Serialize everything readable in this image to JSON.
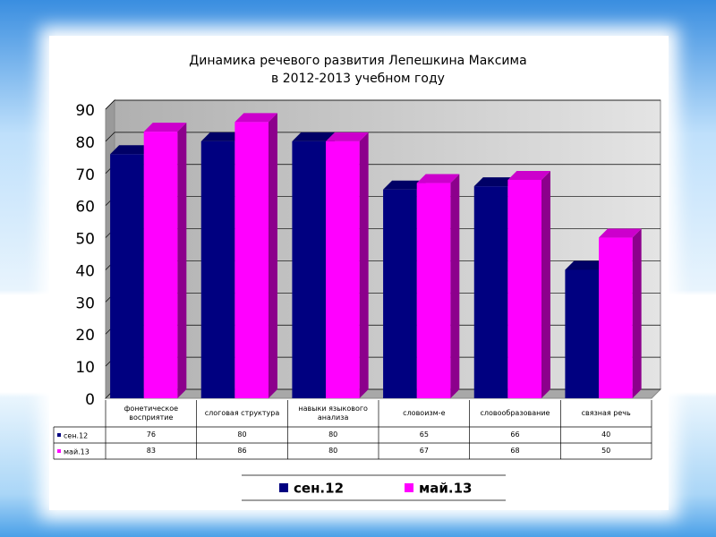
{
  "chart_data": {
    "type": "bar3d",
    "title_lines": [
      "Динамика речевого развития Лепешкина Максима",
      "в 2012-2013 учебном году"
    ],
    "categories": [
      "фонетическое восприятие",
      "слоговая структура",
      "навыки языкового анализа",
      "словоизм-е",
      "словообразование",
      "связная речь"
    ],
    "series": [
      {
        "name": "сен.12",
        "color": "#000080",
        "values": [
          76,
          80,
          80,
          65,
          66,
          40
        ]
      },
      {
        "name": "май.13",
        "color": "#ff00ff",
        "values": [
          83,
          86,
          80,
          67,
          68,
          50
        ]
      }
    ],
    "ylim": [
      0,
      90
    ],
    "yticks": [
      0,
      10,
      20,
      30,
      40,
      50,
      60,
      70,
      80,
      90
    ],
    "grid": true,
    "data_table": true,
    "legend": "bottom"
  }
}
